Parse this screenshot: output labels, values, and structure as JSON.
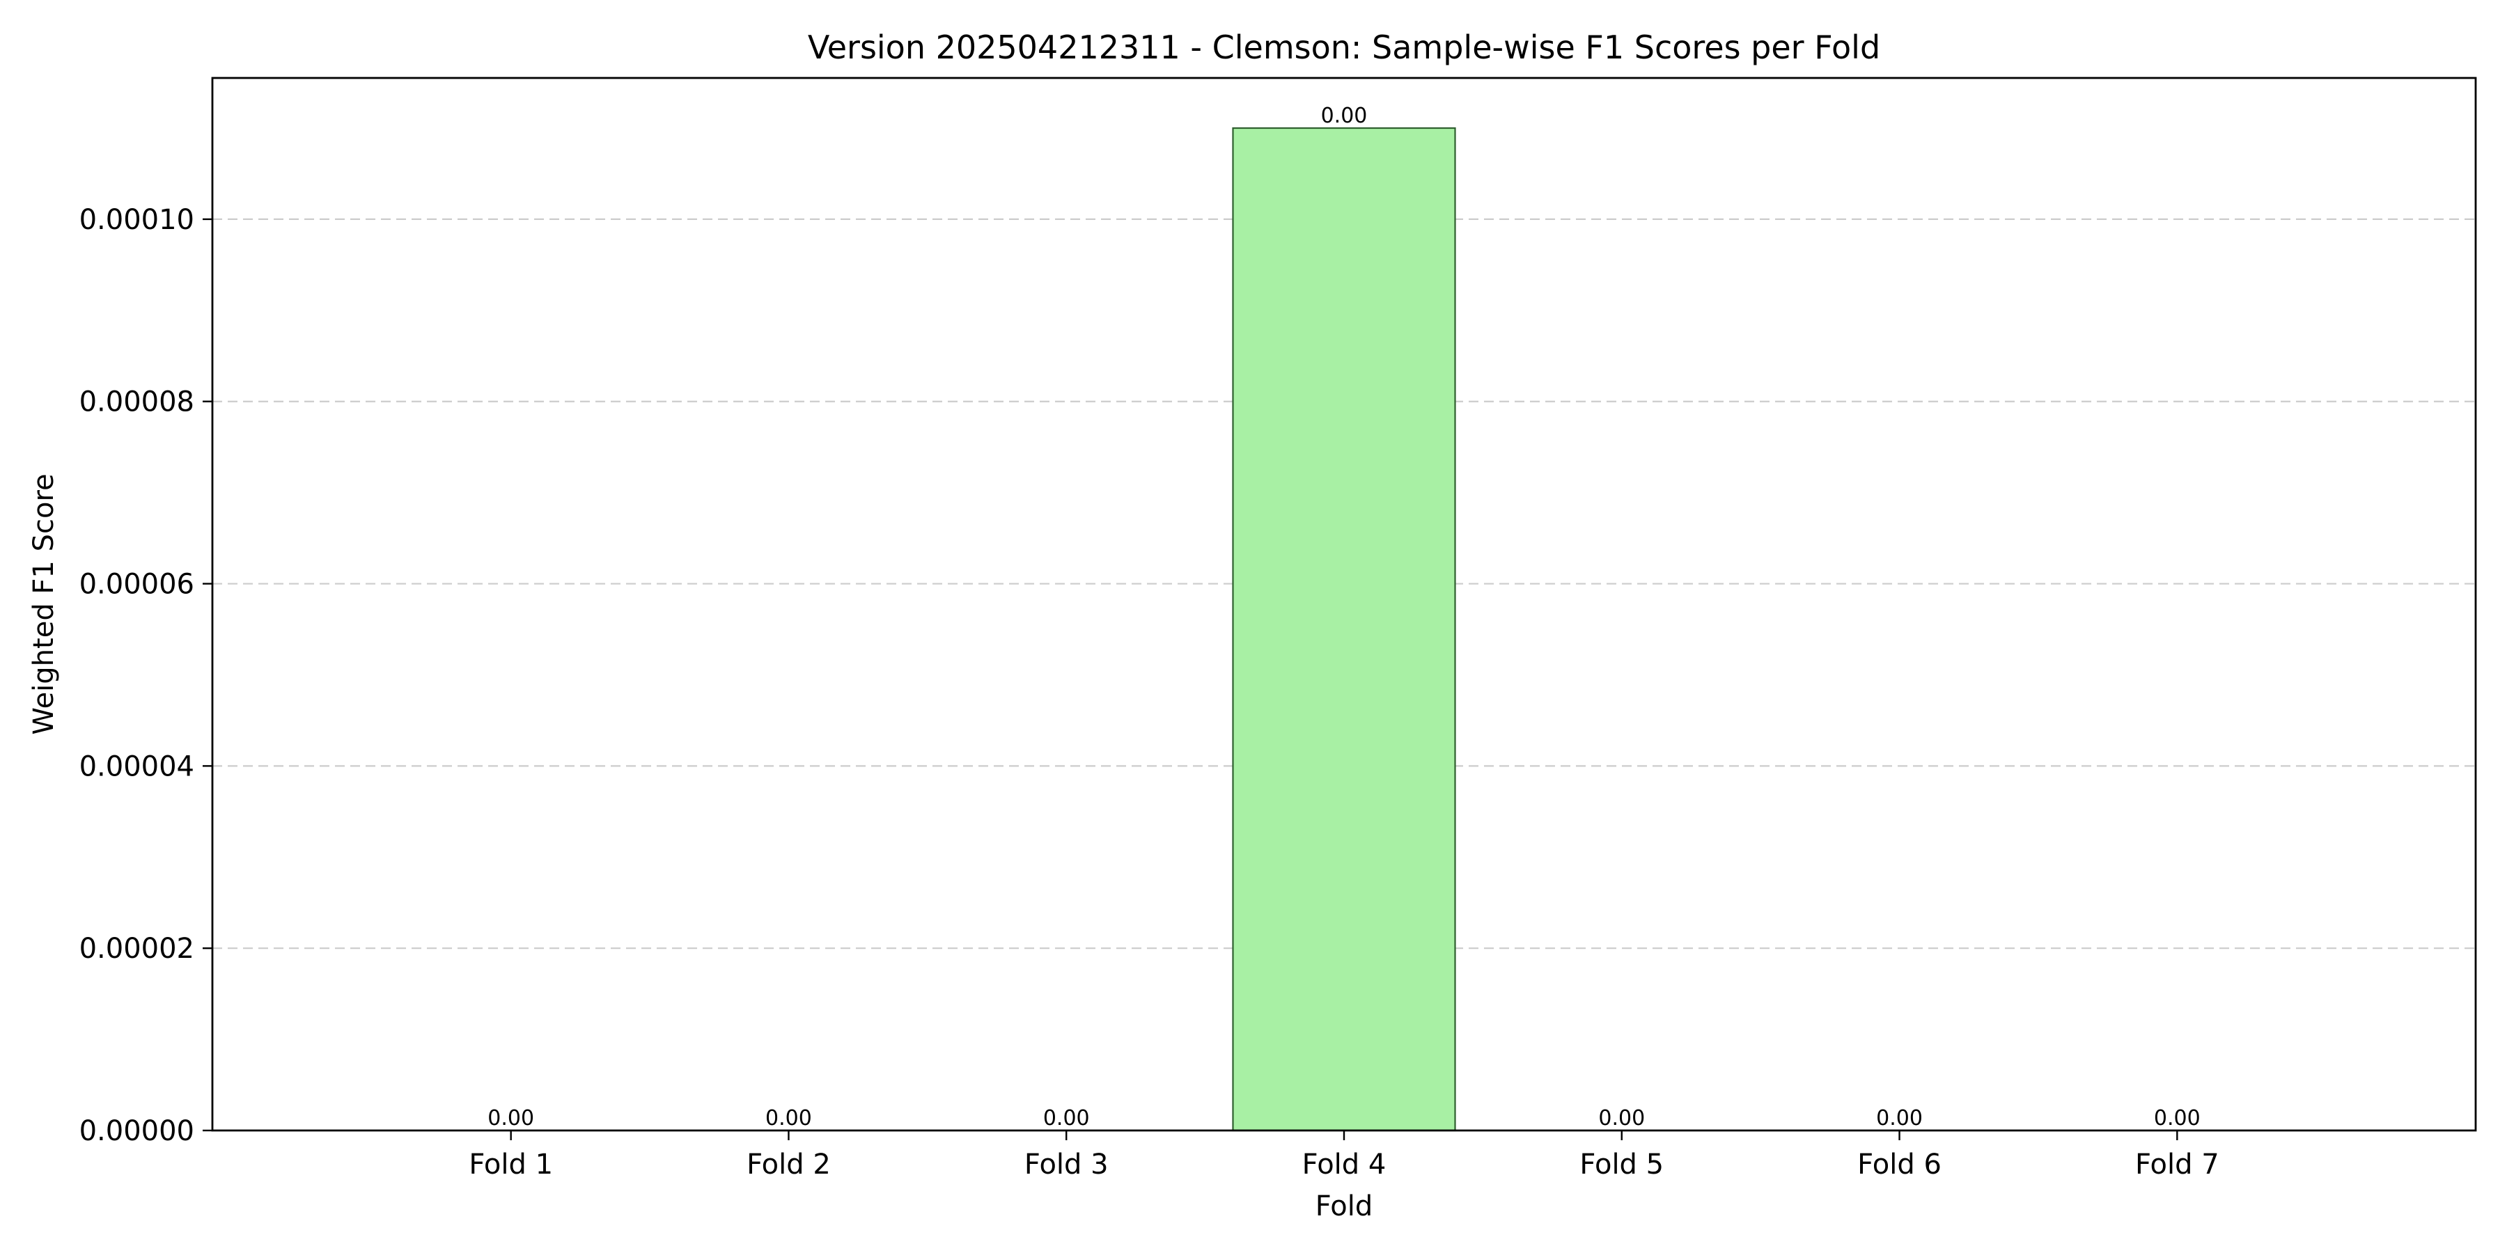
{
  "chart_data": {
    "type": "bar",
    "title": "Version 202504212311 - Clemson: Sample-wise F1 Scores per Fold",
    "xlabel": "Fold",
    "ylabel": "Weighted F1 Score",
    "categories": [
      "Fold 1",
      "Fold 2",
      "Fold 3",
      "Fold 4",
      "Fold 5",
      "Fold 6",
      "Fold 7"
    ],
    "values": [
      0,
      0,
      0,
      0.00011,
      0,
      0,
      0
    ],
    "data_labels": [
      "0.00",
      "0.00",
      "0.00",
      "0.00",
      "0.00",
      "0.00",
      "0.00"
    ],
    "yticks": [
      0,
      2e-05,
      4e-05,
      6e-05,
      8e-05,
      0.0001
    ],
    "ytick_labels": [
      "0.00000",
      "0.00002",
      "0.00004",
      "0.00006",
      "0.00008",
      "0.00010"
    ],
    "ylim": [
      0,
      0.0001155
    ],
    "grid": "y-dashed",
    "bar_color": "#a8f0a4",
    "bar_edge_color": "#2f5f2f"
  }
}
